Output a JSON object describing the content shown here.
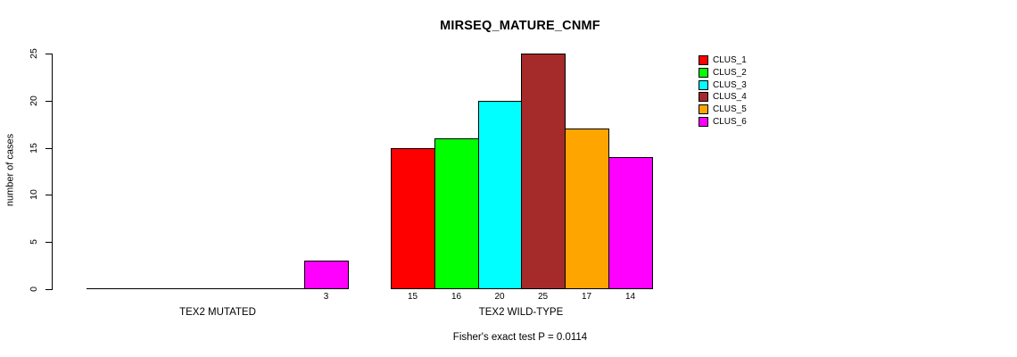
{
  "chart_data": {
    "type": "bar",
    "title": "MIRSEQ_MATURE_CNMF",
    "xlabel": "",
    "ylabel": "number of cases",
    "ylim": [
      0,
      25
    ],
    "yticks": [
      0,
      5,
      10,
      15,
      20,
      25
    ],
    "grid": false,
    "legend_position": "right",
    "categories": [
      "TEX2 MUTATED",
      "TEX2 WILD-TYPE"
    ],
    "series": [
      {
        "name": "CLUS_1",
        "color": "#ff0000",
        "values": [
          0,
          15
        ]
      },
      {
        "name": "CLUS_2",
        "color": "#00ff00",
        "values": [
          0,
          16
        ]
      },
      {
        "name": "CLUS_3",
        "color": "#00ffff",
        "values": [
          0,
          20
        ]
      },
      {
        "name": "CLUS_4",
        "color": "#a52a2a",
        "values": [
          0,
          25
        ]
      },
      {
        "name": "CLUS_5",
        "color": "#ffa500",
        "values": [
          0,
          17
        ]
      },
      {
        "name": "CLUS_6",
        "color": "#ff00ff",
        "values": [
          3,
          14
        ]
      }
    ],
    "bar_value_labels_shown_when_nonzero": true,
    "footnote": "Fisher's exact test P = 0.0114"
  }
}
